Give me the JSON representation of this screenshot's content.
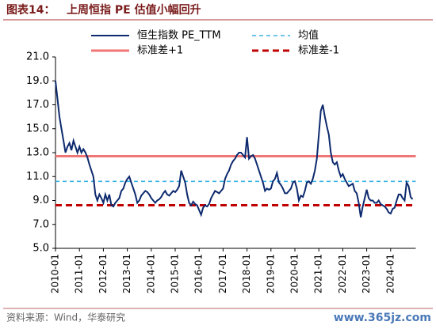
{
  "chart_data": {
    "type": "line",
    "title_prefix": "图表14：",
    "title": "上周恒指 PE 估值小幅回升",
    "source": "资料来源：Wind，华泰研究",
    "watermark": "www.365jz.com",
    "x": [
      "2010-01",
      "2010-02",
      "2010-03",
      "2010-04",
      "2010-05",
      "2010-06",
      "2010-07",
      "2010-08",
      "2010-09",
      "2010-10",
      "2010-11",
      "2010-12",
      "2011-01",
      "2011-02",
      "2011-03",
      "2011-04",
      "2011-05",
      "2011-06",
      "2011-07",
      "2011-08",
      "2011-09",
      "2011-10",
      "2011-11",
      "2011-12",
      "2012-01",
      "2012-02",
      "2012-03",
      "2012-04",
      "2012-05",
      "2012-06",
      "2012-07",
      "2012-08",
      "2012-09",
      "2012-10",
      "2012-11",
      "2012-12",
      "2013-01",
      "2013-02",
      "2013-03",
      "2013-04",
      "2013-05",
      "2013-06",
      "2013-07",
      "2013-08",
      "2013-09",
      "2013-10",
      "2013-11",
      "2013-12",
      "2014-01",
      "2014-02",
      "2014-03",
      "2014-04",
      "2014-05",
      "2014-06",
      "2014-07",
      "2014-08",
      "2014-09",
      "2014-10",
      "2014-11",
      "2014-12",
      "2015-01",
      "2015-02",
      "2015-03",
      "2015-04",
      "2015-05",
      "2015-06",
      "2015-07",
      "2015-08",
      "2015-09",
      "2015-10",
      "2015-11",
      "2015-12",
      "2016-01",
      "2016-02",
      "2016-03",
      "2016-04",
      "2016-05",
      "2016-06",
      "2016-07",
      "2016-08",
      "2016-09",
      "2016-10",
      "2016-11",
      "2016-12",
      "2017-01",
      "2017-02",
      "2017-03",
      "2017-04",
      "2017-05",
      "2017-06",
      "2017-07",
      "2017-08",
      "2017-09",
      "2017-10",
      "2017-11",
      "2017-12",
      "2018-01",
      "2018-02",
      "2018-03",
      "2018-04",
      "2018-05",
      "2018-06",
      "2018-07",
      "2018-08",
      "2018-09",
      "2018-10",
      "2018-11",
      "2018-12",
      "2019-01",
      "2019-02",
      "2019-03",
      "2019-04",
      "2019-05",
      "2019-06",
      "2019-07",
      "2019-08",
      "2019-09",
      "2019-10",
      "2019-11",
      "2019-12",
      "2020-01",
      "2020-02",
      "2020-03",
      "2020-04",
      "2020-05",
      "2020-06",
      "2020-07",
      "2020-08",
      "2020-09",
      "2020-10",
      "2020-11",
      "2020-12",
      "2021-01",
      "2021-02",
      "2021-03",
      "2021-04",
      "2021-05",
      "2021-06",
      "2021-07",
      "2021-08",
      "2021-09",
      "2021-10",
      "2021-11",
      "2021-12",
      "2022-01",
      "2022-02",
      "2022-03",
      "2022-04",
      "2022-05",
      "2022-06",
      "2022-07",
      "2022-08",
      "2022-09",
      "2022-10",
      "2022-11",
      "2022-12",
      "2023-01",
      "2023-02",
      "2023-03",
      "2023-04",
      "2023-05",
      "2023-06",
      "2023-07",
      "2023-08",
      "2023-09",
      "2023-10",
      "2023-11",
      "2023-12",
      "2024-01",
      "2024-02",
      "2024-03",
      "2024-04",
      "2024-05",
      "2024-06",
      "2024-07",
      "2024-08",
      "2024-09",
      "2024-10",
      "2024-11",
      "2024-12"
    ],
    "series": [
      {
        "name": "恒生指数 PE_TTM",
        "color": "#0d2a6e",
        "values": [
          19.0,
          17.5,
          16.0,
          15.0,
          14.0,
          13.0,
          13.5,
          13.8,
          13.2,
          14.0,
          13.5,
          13.0,
          13.5,
          13.0,
          13.3,
          13.0,
          12.6,
          12.0,
          11.5,
          11.0,
          9.5,
          9.0,
          9.5,
          9.2,
          8.8,
          9.5,
          9.0,
          9.5,
          8.6,
          8.5,
          8.8,
          9.0,
          9.2,
          9.8,
          10.0,
          10.5,
          10.8,
          11.0,
          10.5,
          10.0,
          9.5,
          8.8,
          9.0,
          9.4,
          9.6,
          9.8,
          9.7,
          9.5,
          9.2,
          9.0,
          8.8,
          9.0,
          9.1,
          9.3,
          9.6,
          9.8,
          9.5,
          9.4,
          9.6,
          9.8,
          9.7,
          9.9,
          10.2,
          11.5,
          11.0,
          10.5,
          9.5,
          8.8,
          8.6,
          8.9,
          8.7,
          8.6,
          8.2,
          7.8,
          8.4,
          8.6,
          8.5,
          8.7,
          9.2,
          9.5,
          9.8,
          9.7,
          9.6,
          9.8,
          10.0,
          10.8,
          11.2,
          11.5,
          12.0,
          12.3,
          12.5,
          12.8,
          13.0,
          13.0,
          12.8,
          12.6,
          14.3,
          12.5,
          12.7,
          12.8,
          12.5,
          12.0,
          11.5,
          11.0,
          10.5,
          9.8,
          10.0,
          9.9,
          10.0,
          10.6,
          10.8,
          11.3,
          10.5,
          10.3,
          10.0,
          9.6,
          9.6,
          9.8,
          10.0,
          10.5,
          10.6,
          10.0,
          9.0,
          9.4,
          9.3,
          9.8,
          10.5,
          10.6,
          10.4,
          10.8,
          11.5,
          12.5,
          14.5,
          16.5,
          17.0,
          16.0,
          15.2,
          14.5,
          13.0,
          12.2,
          12.0,
          12.2,
          11.5,
          11.0,
          11.2,
          10.8,
          10.5,
          10.2,
          10.3,
          10.4,
          9.8,
          9.6,
          8.8,
          7.6,
          8.5,
          9.2,
          9.9,
          9.2,
          9.0,
          9.0,
          8.8,
          8.8,
          9.0,
          8.7,
          8.6,
          8.5,
          8.3,
          8.0,
          7.9,
          8.3,
          8.4,
          9.0,
          9.5,
          9.5,
          9.2,
          9.0,
          10.5,
          10.2,
          9.3,
          9.1
        ]
      }
    ],
    "reference_lines": [
      {
        "name": "均值",
        "value": 10.6,
        "color": "#3cb4e6",
        "style": "dashed"
      },
      {
        "name": "标准差+1",
        "value": 12.7,
        "color": "#f07575",
        "style": "solid"
      },
      {
        "name": "标准差-1",
        "value": 8.6,
        "color": "#c00000",
        "style": "dashed"
      }
    ],
    "xlim": [
      "2010-01",
      "2024-12"
    ],
    "xticks": [
      "2010-01",
      "2011-01",
      "2012-01",
      "2013-01",
      "2014-01",
      "2015-01",
      "2016-01",
      "2017-01",
      "2018-01",
      "2019-01",
      "2020-01",
      "2021-01",
      "2022-01",
      "2023-01",
      "2024-01"
    ],
    "ylim": [
      5,
      21
    ],
    "yticks": [
      {
        "value": 5,
        "label": "5.0"
      },
      {
        "value": 7,
        "label": "7.0"
      },
      {
        "value": 9,
        "label": "9.0"
      },
      {
        "value": 11,
        "label": "11.0"
      },
      {
        "value": 13,
        "label": "13.0"
      },
      {
        "value": 15,
        "label": "15.0"
      },
      {
        "value": 17,
        "label": "17.0"
      },
      {
        "value": 19,
        "label": "19.0"
      },
      {
        "value": 21,
        "label": "21.0"
      }
    ]
  }
}
